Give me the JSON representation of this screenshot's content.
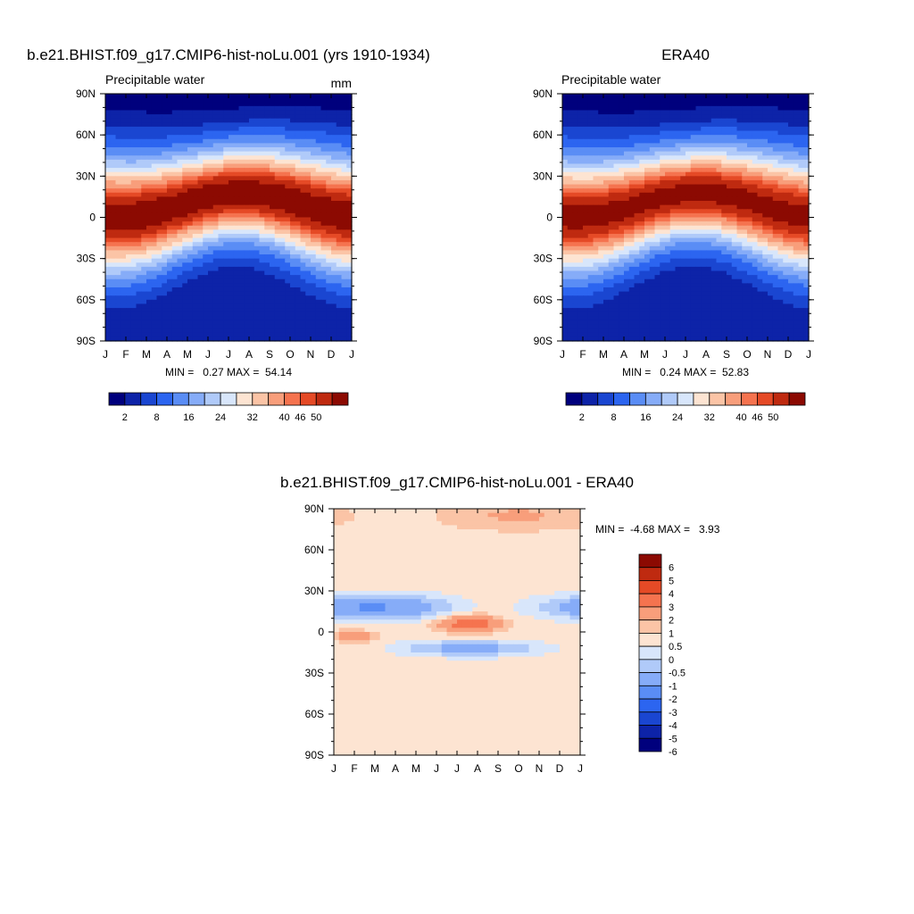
{
  "palette": [
    "#00007d",
    "#0d23a8",
    "#1a46d1",
    "#2c65f0",
    "#5a8df5",
    "#86acf8",
    "#b0caf9",
    "#d8e6fb",
    "#fde4d2",
    "#fbc4a6",
    "#f89e7b",
    "#f5734f",
    "#e54a26",
    "#bf2a10",
    "#8c0a02"
  ],
  "diff_palette": [
    "#00007d",
    "#0d23a8",
    "#1a46d1",
    "#2c65f0",
    "#5a8df5",
    "#86acf8",
    "#b0caf9",
    "#d8e6fb",
    "#fde4d2",
    "#fbc4a6",
    "#f89e7b",
    "#f5734f",
    "#e54a26",
    "#bf2a10",
    "#8c0a02"
  ],
  "chart_data": [
    {
      "type": "heatmap",
      "id": "model",
      "title": "b.e21.BHIST.f09_g17.CMIP6-hist-noLu.001 (yrs 1910-1934)",
      "subtitle_left": "Precipitable water",
      "subtitle_right": "mm",
      "x_ticks": [
        "J",
        "F",
        "M",
        "A",
        "M",
        "J",
        "J",
        "A",
        "S",
        "O",
        "N",
        "D",
        "J"
      ],
      "y_ticks": [
        "90N",
        "60N",
        "30N",
        "0",
        "30S",
        "60S",
        "90S"
      ],
      "ylim": [
        -90,
        90
      ],
      "stats": "MIN =   0.27 MAX =  54.14",
      "min": 0.27,
      "max": 54.14,
      "itcz_peak": 54.14,
      "colorbar_labels": [
        "2",
        "8",
        "16",
        "24",
        "32",
        "40",
        "46",
        "50"
      ]
    },
    {
      "type": "heatmap",
      "id": "obs",
      "title": "ERA40",
      "subtitle_left": "Precipitable water",
      "subtitle_right": "",
      "x_ticks": [
        "J",
        "F",
        "M",
        "A",
        "M",
        "J",
        "J",
        "A",
        "S",
        "O",
        "N",
        "D",
        "J"
      ],
      "y_ticks": [
        "90N",
        "60N",
        "30N",
        "0",
        "30S",
        "60S",
        "90S"
      ],
      "ylim": [
        -90,
        90
      ],
      "stats": "MIN =   0.24 MAX =  52.83",
      "min": 0.24,
      "max": 52.83,
      "itcz_peak": 52.83,
      "colorbar_labels": [
        "2",
        "8",
        "16",
        "24",
        "32",
        "40",
        "46",
        "50"
      ]
    },
    {
      "type": "heatmap",
      "id": "diff",
      "title": "b.e21.BHIST.f09_g17.CMIP6-hist-noLu.001 - ERA40",
      "x_ticks": [
        "J",
        "F",
        "M",
        "A",
        "M",
        "J",
        "J",
        "A",
        "S",
        "O",
        "N",
        "D",
        "J"
      ],
      "y_ticks": [
        "90N",
        "60N",
        "30N",
        "0",
        "30S",
        "60S",
        "90S"
      ],
      "ylim": [
        -90,
        90
      ],
      "stats": "MIN =  -4.68 MAX =   3.93",
      "min": -4.68,
      "max": 3.93,
      "colorbar_labels": [
        "6",
        "5",
        "4",
        "3",
        "2",
        "1",
        "0.5",
        "0",
        "-0.5",
        "-1",
        "-2",
        "-3",
        "-4",
        "-5",
        "-6"
      ]
    }
  ]
}
